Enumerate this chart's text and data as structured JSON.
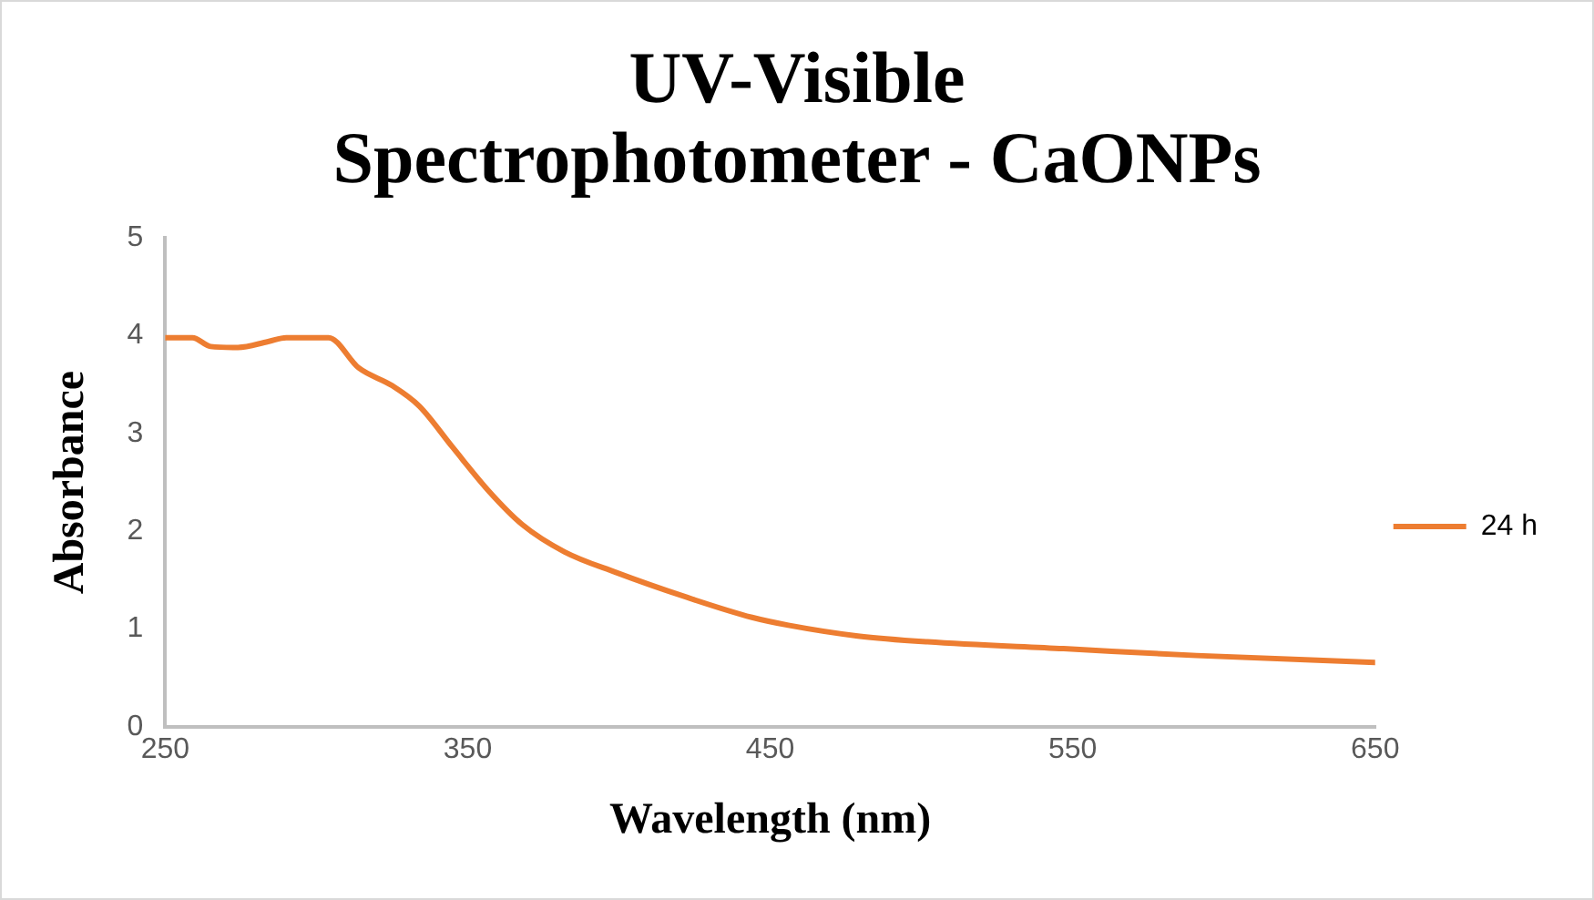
{
  "chart_data": {
    "type": "line",
    "title": "UV-Visible Spectrophotometer - CaONPs",
    "xlabel": "Wavelength (nm)",
    "ylabel": "Absorbance",
    "series": [
      {
        "name": "24 h",
        "color": "#ed7d31",
        "x": [
          250,
          259,
          265,
          274,
          284,
          290,
          304,
          314,
          325,
          334,
          345,
          357,
          368,
          382,
          399,
          422,
          444,
          456,
          479,
          502,
          547,
          591,
          650
        ],
        "values": [
          3.98,
          3.98,
          3.89,
          3.88,
          3.94,
          3.98,
          3.98,
          3.67,
          3.49,
          3.28,
          2.86,
          2.41,
          2.07,
          1.79,
          1.58,
          1.33,
          1.12,
          1.04,
          0.93,
          0.87,
          0.8,
          0.73,
          0.66
        ]
      }
    ],
    "xlim": [
      250,
      650
    ],
    "xticks": [
      250,
      350,
      450,
      550,
      650
    ],
    "ylim": [
      0,
      5
    ],
    "yticks": [
      0,
      1,
      2,
      3,
      4,
      5
    ],
    "grid": false,
    "legend": "right",
    "marker": "none",
    "line_style": "solid"
  }
}
